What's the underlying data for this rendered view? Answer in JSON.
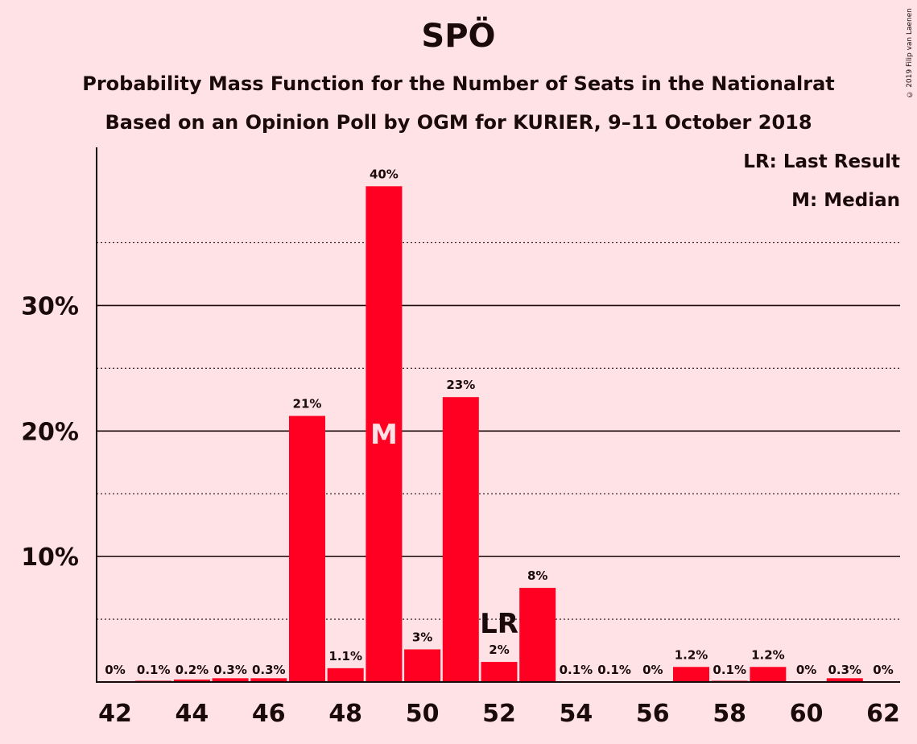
{
  "chart_data": {
    "type": "bar",
    "title": "SPÖ",
    "subtitle_lines": [
      "Probability Mass Function for the Number of Seats in the Nationalrat",
      "Based on an Opinion Poll by OGM for KURIER, 9–11 October 2018"
    ],
    "copyright": "© 2019 Filip van Laenen",
    "x": [
      42,
      43,
      44,
      45,
      46,
      47,
      48,
      49,
      50,
      51,
      52,
      53,
      54,
      55,
      56,
      57,
      58,
      59,
      60,
      61,
      62
    ],
    "values": [
      0,
      0.1,
      0.2,
      0.3,
      0.3,
      21.2,
      1.1,
      39.5,
      2.6,
      22.7,
      1.6,
      7.5,
      0.05,
      0.05,
      0,
      1.2,
      0.1,
      1.2,
      0,
      0.3,
      0
    ],
    "data_labels": [
      "0%",
      "0.1%",
      "0.2%",
      "0.3%",
      "0.3%",
      "21%",
      "1.1%",
      "40%",
      "3%",
      "23%",
      "2%",
      "8%",
      "0.1%",
      "0.1%",
      "0%",
      "1.2%",
      "0.1%",
      "1.2%",
      "0%",
      "0.3%",
      "0%"
    ],
    "x_ticks": [
      42,
      44,
      46,
      48,
      50,
      52,
      54,
      56,
      58,
      60,
      62
    ],
    "y_ticks": [
      10,
      20,
      30
    ],
    "y_tick_labels": [
      "10%",
      "20%",
      "30%"
    ],
    "y_minor_gridlines": [
      5,
      15,
      25,
      35
    ],
    "ylim": [
      0,
      42.6
    ],
    "grid": true,
    "bar_color": "#FF0022",
    "median_seat": 49,
    "median_marker": "M",
    "last_result_seat": 52,
    "last_result_marker": "LR",
    "legend_position": "top-right",
    "legend": [
      "LR: Last Result",
      "M: Median"
    ]
  }
}
